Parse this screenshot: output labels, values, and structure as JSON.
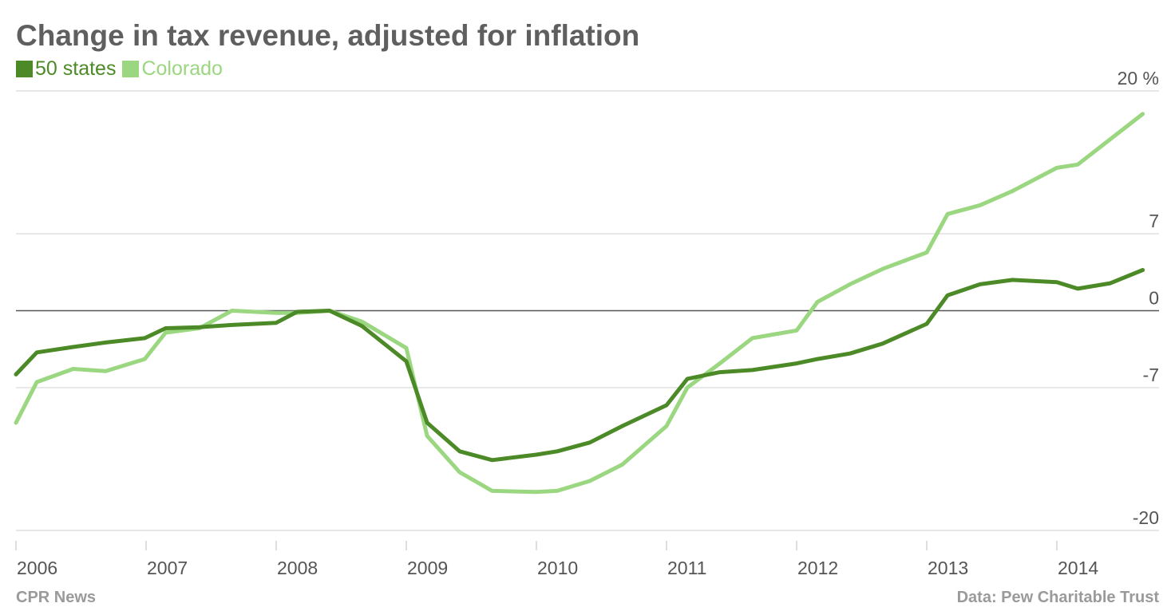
{
  "colors": {
    "series_dark": "#4b8a26",
    "series_light": "#9ad780",
    "grid": "#d6d6d6",
    "zero_line": "#555555",
    "text": "#555555",
    "footer_text": "#9a9a9a"
  },
  "footer": {
    "source_left": "CPR News",
    "source_right": "Data: Pew Charitable Trust"
  },
  "chart_data": {
    "type": "line",
    "title": "Change in tax revenue, adjusted for inflation",
    "xlabel": "",
    "ylabel": "",
    "y_unit": "%",
    "ylim": [
      -20,
      20
    ],
    "xlim": [
      2006,
      2014.8
    ],
    "y_ticks": [
      {
        "value": 20,
        "label": "20 %"
      },
      {
        "value": 7,
        "label": "7"
      },
      {
        "value": 0,
        "label": "0"
      },
      {
        "value": -7,
        "label": "-7"
      },
      {
        "value": -20,
        "label": "-20"
      }
    ],
    "x_ticks": [
      {
        "value": 2006,
        "label": "2006"
      },
      {
        "value": 2007,
        "label": "2007"
      },
      {
        "value": 2008,
        "label": "2008"
      },
      {
        "value": 2009,
        "label": "2009"
      },
      {
        "value": 2010,
        "label": "2010"
      },
      {
        "value": 2011,
        "label": "2011"
      },
      {
        "value": 2012,
        "label": "2012"
      },
      {
        "value": 2013,
        "label": "2013"
      },
      {
        "value": 2014,
        "label": "2014"
      }
    ],
    "grid": true,
    "legend_position": "top-left",
    "series": [
      {
        "name": "50 states",
        "color": "#4b8a26",
        "x": [
          2006.0,
          2006.16,
          2006.44,
          2006.69,
          2006.99,
          2007.15,
          2007.41,
          2007.66,
          2008.0,
          2008.16,
          2008.41,
          2008.66,
          2009.0,
          2009.16,
          2009.41,
          2009.66,
          2010.0,
          2010.16,
          2010.41,
          2010.66,
          2011.0,
          2011.16,
          2011.41,
          2011.66,
          2012.0,
          2012.16,
          2012.41,
          2012.66,
          2013.0,
          2013.16,
          2013.41,
          2013.66,
          2014.0,
          2014.16,
          2014.41,
          2014.66
        ],
        "y": [
          -5.8,
          -3.8,
          -3.3,
          -2.9,
          -2.5,
          -1.6,
          -1.5,
          -1.3,
          -1.1,
          -0.1,
          0.0,
          -1.4,
          -4.6,
          -10.2,
          -12.8,
          -13.6,
          -13.1,
          -12.8,
          -12.0,
          -10.5,
          -8.6,
          -6.2,
          -5.6,
          -5.4,
          -4.8,
          -4.4,
          -3.9,
          -3.0,
          -1.2,
          1.4,
          2.4,
          2.8,
          2.6,
          2.0,
          2.5,
          3.7
        ]
      },
      {
        "name": "Colorado",
        "color": "#9ad780",
        "x": [
          2006.0,
          2006.16,
          2006.44,
          2006.69,
          2006.99,
          2007.15,
          2007.41,
          2007.66,
          2008.0,
          2008.16,
          2008.41,
          2008.66,
          2009.0,
          2009.16,
          2009.41,
          2009.66,
          2010.0,
          2010.16,
          2010.41,
          2010.66,
          2011.0,
          2011.16,
          2011.41,
          2011.66,
          2012.0,
          2012.16,
          2012.41,
          2012.66,
          2013.0,
          2013.16,
          2013.41,
          2013.66,
          2014.0,
          2014.16,
          2014.41,
          2014.66
        ],
        "y": [
          -10.2,
          -6.5,
          -5.3,
          -5.5,
          -4.4,
          -2.0,
          -1.6,
          0.0,
          -0.2,
          -0.2,
          0.0,
          -1.0,
          -3.4,
          -11.4,
          -14.7,
          -16.4,
          -16.5,
          -16.4,
          -15.5,
          -14.0,
          -10.5,
          -7.0,
          -4.8,
          -2.5,
          -1.8,
          0.8,
          2.4,
          3.8,
          5.3,
          8.8,
          9.6,
          10.9,
          13.0,
          13.3,
          15.6,
          17.9
        ]
      }
    ]
  }
}
